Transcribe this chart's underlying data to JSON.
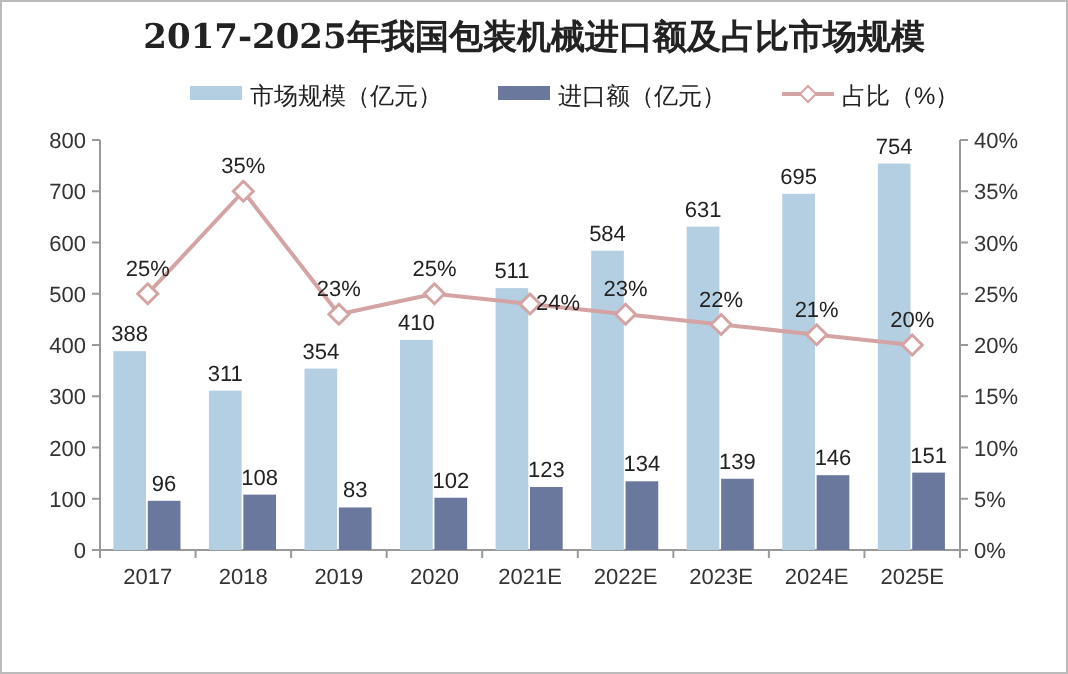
{
  "chart_data": {
    "type": "bar",
    "title": "2017-2025年我国包装机械进口额及占比市场规模",
    "categories": [
      "2017",
      "2018",
      "2019",
      "2020",
      "2021E",
      "2022E",
      "2023E",
      "2024E",
      "2025E"
    ],
    "series": [
      {
        "name": "市场规模（亿元）",
        "type": "bar",
        "color": "#b4cfe1",
        "values": [
          388,
          311,
          354,
          410,
          511,
          584,
          631,
          695,
          754
        ]
      },
      {
        "name": "进口额（亿元）",
        "type": "bar",
        "color": "#6b789e",
        "values": [
          96,
          108,
          83,
          102,
          123,
          134,
          139,
          146,
          151
        ]
      },
      {
        "name": "占比（%）",
        "type": "line",
        "axis": "y2",
        "color": "#d4a3a3",
        "marker": "diamond",
        "value_labels": [
          "25%",
          "35%",
          "23%",
          "25%",
          "24%",
          "23%",
          "22%",
          "21%",
          "20%"
        ],
        "values": [
          25,
          35,
          23,
          25,
          24,
          23,
          22,
          21,
          20
        ]
      }
    ],
    "ylim": [
      0,
      800
    ],
    "yticks": [
      0,
      100,
      200,
      300,
      400,
      500,
      600,
      700,
      800
    ],
    "y2lim": [
      0,
      40
    ],
    "y2ticks": [
      {
        "value": 0,
        "label": "0%"
      },
      {
        "value": 5,
        "label": "5%"
      },
      {
        "value": 10,
        "label": "10%"
      },
      {
        "value": 15,
        "label": "15%"
      },
      {
        "value": 20,
        "label": "20%"
      },
      {
        "value": 25,
        "label": "25%"
      },
      {
        "value": 30,
        "label": "30%"
      },
      {
        "value": 35,
        "label": "35%"
      },
      {
        "value": 40,
        "label": "40%"
      }
    ],
    "data_labels": true,
    "legend": "top",
    "grid": false
  }
}
